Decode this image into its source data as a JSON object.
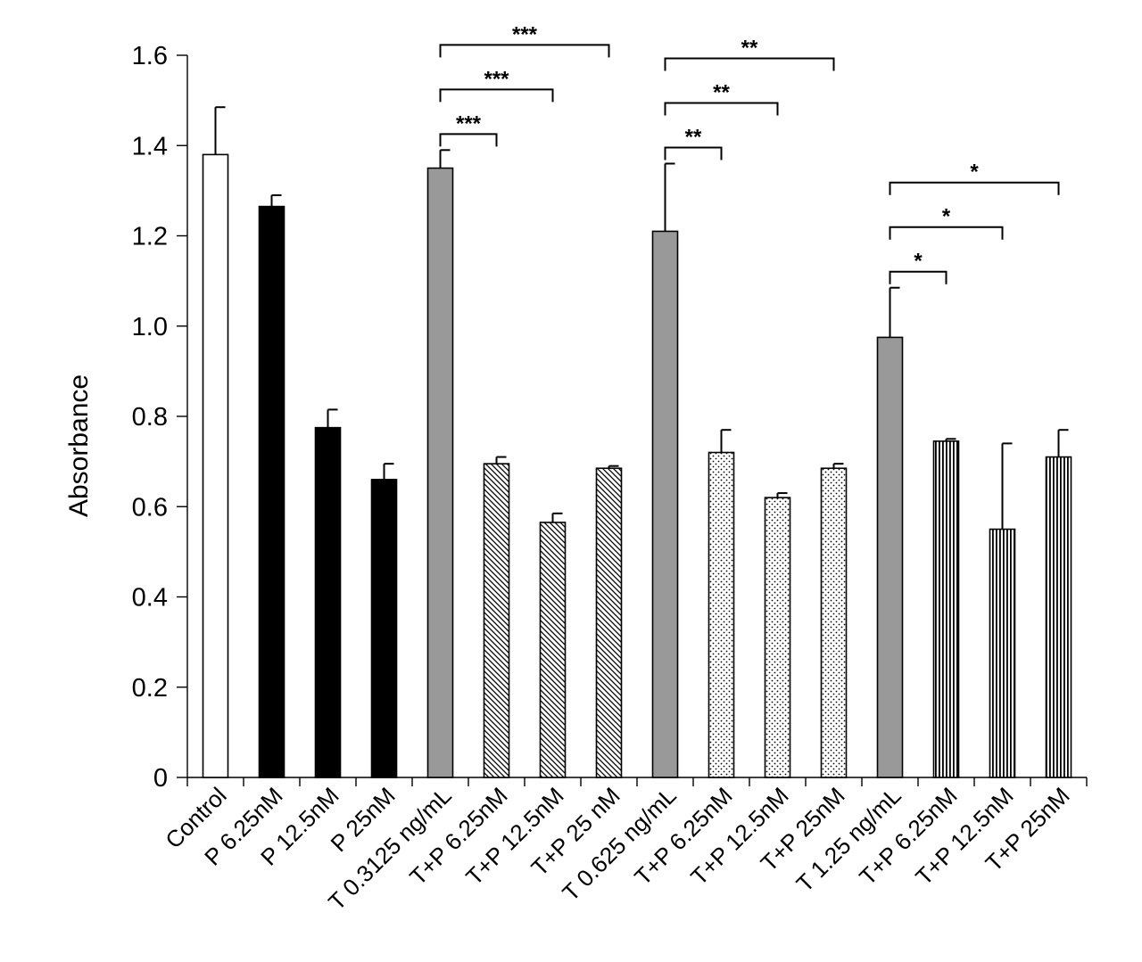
{
  "chart_data": {
    "type": "bar",
    "title": "",
    "xlabel": "",
    "ylabel": "Absorbance",
    "ylim": [
      0,
      1.6
    ],
    "y_ticks": [
      {
        "value": 0,
        "label": "0"
      },
      {
        "value": 0.2,
        "label": "0.2"
      },
      {
        "value": 0.4,
        "label": "0.4"
      },
      {
        "value": 0.6,
        "label": "0.6"
      },
      {
        "value": 0.8,
        "label": "0.8"
      },
      {
        "value": 1.0,
        "label": "1.0"
      },
      {
        "value": 1.2,
        "label": "1.2"
      },
      {
        "value": 1.4,
        "label": "1.4"
      },
      {
        "value": 1.6,
        "label": "1.6"
      }
    ],
    "grid": false,
    "categories": [
      "Control",
      "P 6.25nM",
      "P 12.5nM",
      "P 25nM",
      "T 0.3125 ng/mL",
      "T+P 6.25nM",
      "T+P 12.5nM",
      "T+P 25 nM",
      "T 0.625 ng/mL",
      "T+P 6.25nM",
      "T+P 12.5nM",
      "T+P 25nM",
      "T 1.25 ng/mL",
      "T+P 6.25nM",
      "T+P 12.5nM",
      "T+P 25nM"
    ],
    "values": [
      1.38,
      1.265,
      0.775,
      0.66,
      1.35,
      0.695,
      0.565,
      0.685,
      1.21,
      0.72,
      0.62,
      0.685,
      0.975,
      0.745,
      0.55,
      0.71
    ],
    "errors": [
      0.105,
      0.025,
      0.04,
      0.035,
      0.04,
      0.015,
      0.02,
      0.005,
      0.15,
      0.05,
      0.01,
      0.01,
      0.11,
      0.005,
      0.19,
      0.06
    ],
    "fills": [
      "white",
      "black",
      "black",
      "black",
      "gray",
      "diagonal",
      "diagonal",
      "diagonal",
      "gray",
      "dots",
      "dots",
      "dots",
      "gray",
      "vertical",
      "vertical",
      "vertical"
    ],
    "colors": {
      "white": "#ffffff",
      "black": "#000000",
      "gray": "#999999",
      "stroke": "#000000"
    },
    "significance": [
      {
        "from": 4,
        "to": 5,
        "label": "***",
        "level": 1
      },
      {
        "from": 4,
        "to": 6,
        "label": "***",
        "level": 2
      },
      {
        "from": 4,
        "to": 7,
        "label": "***",
        "level": 3
      },
      {
        "from": 8,
        "to": 9,
        "label": "**",
        "level": 1
      },
      {
        "from": 8,
        "to": 10,
        "label": "**",
        "level": 2
      },
      {
        "from": 8,
        "to": 11,
        "label": "**",
        "level": 3
      },
      {
        "from": 12,
        "to": 13,
        "label": "*",
        "level": 1
      },
      {
        "from": 12,
        "to": 14,
        "label": "*",
        "level": 2
      },
      {
        "from": 12,
        "to": 15,
        "label": "*",
        "level": 3
      }
    ]
  }
}
